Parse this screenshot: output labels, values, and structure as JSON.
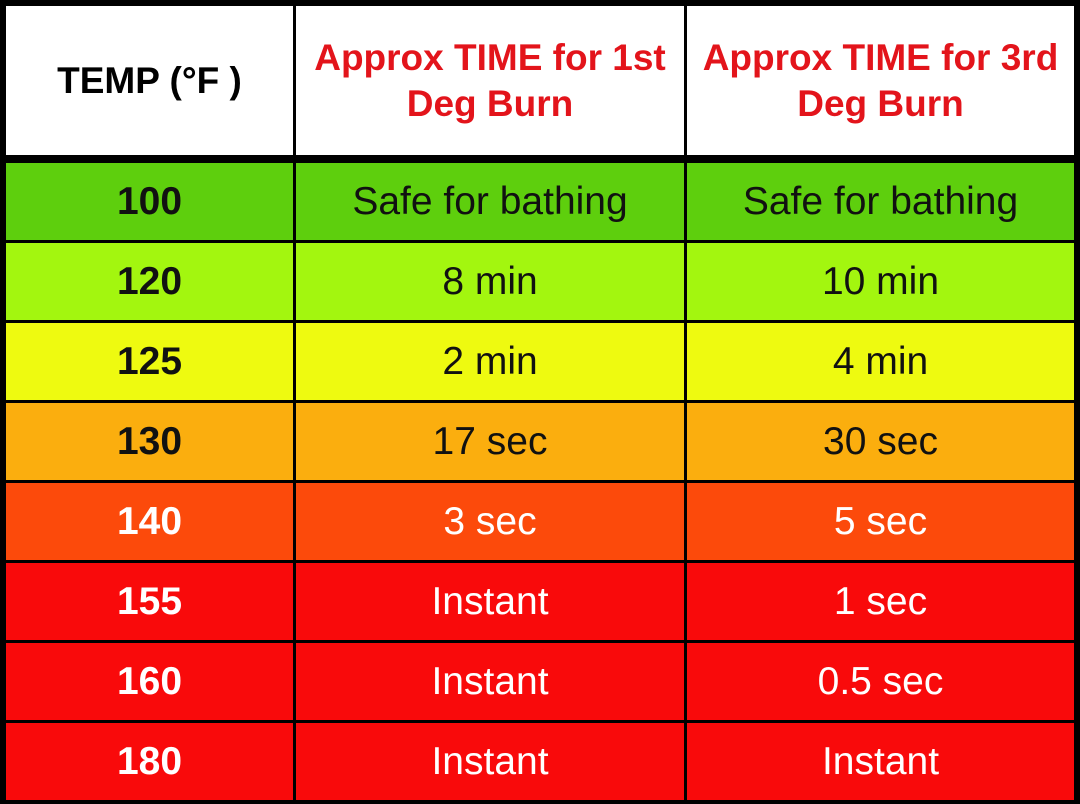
{
  "chart_data": {
    "type": "table",
    "columns": [
      "TEMP (°F )",
      "Approx TIME for 1st Deg Burn",
      "Approx TIME for 3rd Deg Burn"
    ],
    "header": {
      "temp": "TEMP (°F )",
      "first": "Approx TIME for 1st Deg Burn",
      "third": "Approx TIME for 3rd Deg Burn"
    },
    "header_colors": {
      "background": "#ffffff",
      "temp_text": "#000000",
      "time_text": "#e3141b"
    },
    "rows": [
      {
        "temp": "100",
        "first": "Safe for bathing",
        "third": "Safe for bathing",
        "bg": "#5ecf0d",
        "fg": "#111111"
      },
      {
        "temp": "120",
        "first": "8 min",
        "third": "10 min",
        "bg": "#a3f60f",
        "fg": "#111111"
      },
      {
        "temp": "125",
        "first": "2 min",
        "third": "4 min",
        "bg": "#eefa10",
        "fg": "#111111"
      },
      {
        "temp": "130",
        "first": "17 sec",
        "third": "30 sec",
        "bg": "#fbae0e",
        "fg": "#111111"
      },
      {
        "temp": "140",
        "first": "3 sec",
        "third": "5 sec",
        "bg": "#fc4a0b",
        "fg": "#ffffff"
      },
      {
        "temp": "155",
        "first": "Instant",
        "third": "1 sec",
        "bg": "#f90a0b",
        "fg": "#ffffff"
      },
      {
        "temp": "160",
        "first": "Instant",
        "third": "0.5 sec",
        "bg": "#f90a0b",
        "fg": "#ffffff"
      },
      {
        "temp": "180",
        "first": "Instant",
        "third": "Instant",
        "bg": "#f90a0b",
        "fg": "#ffffff"
      }
    ]
  }
}
